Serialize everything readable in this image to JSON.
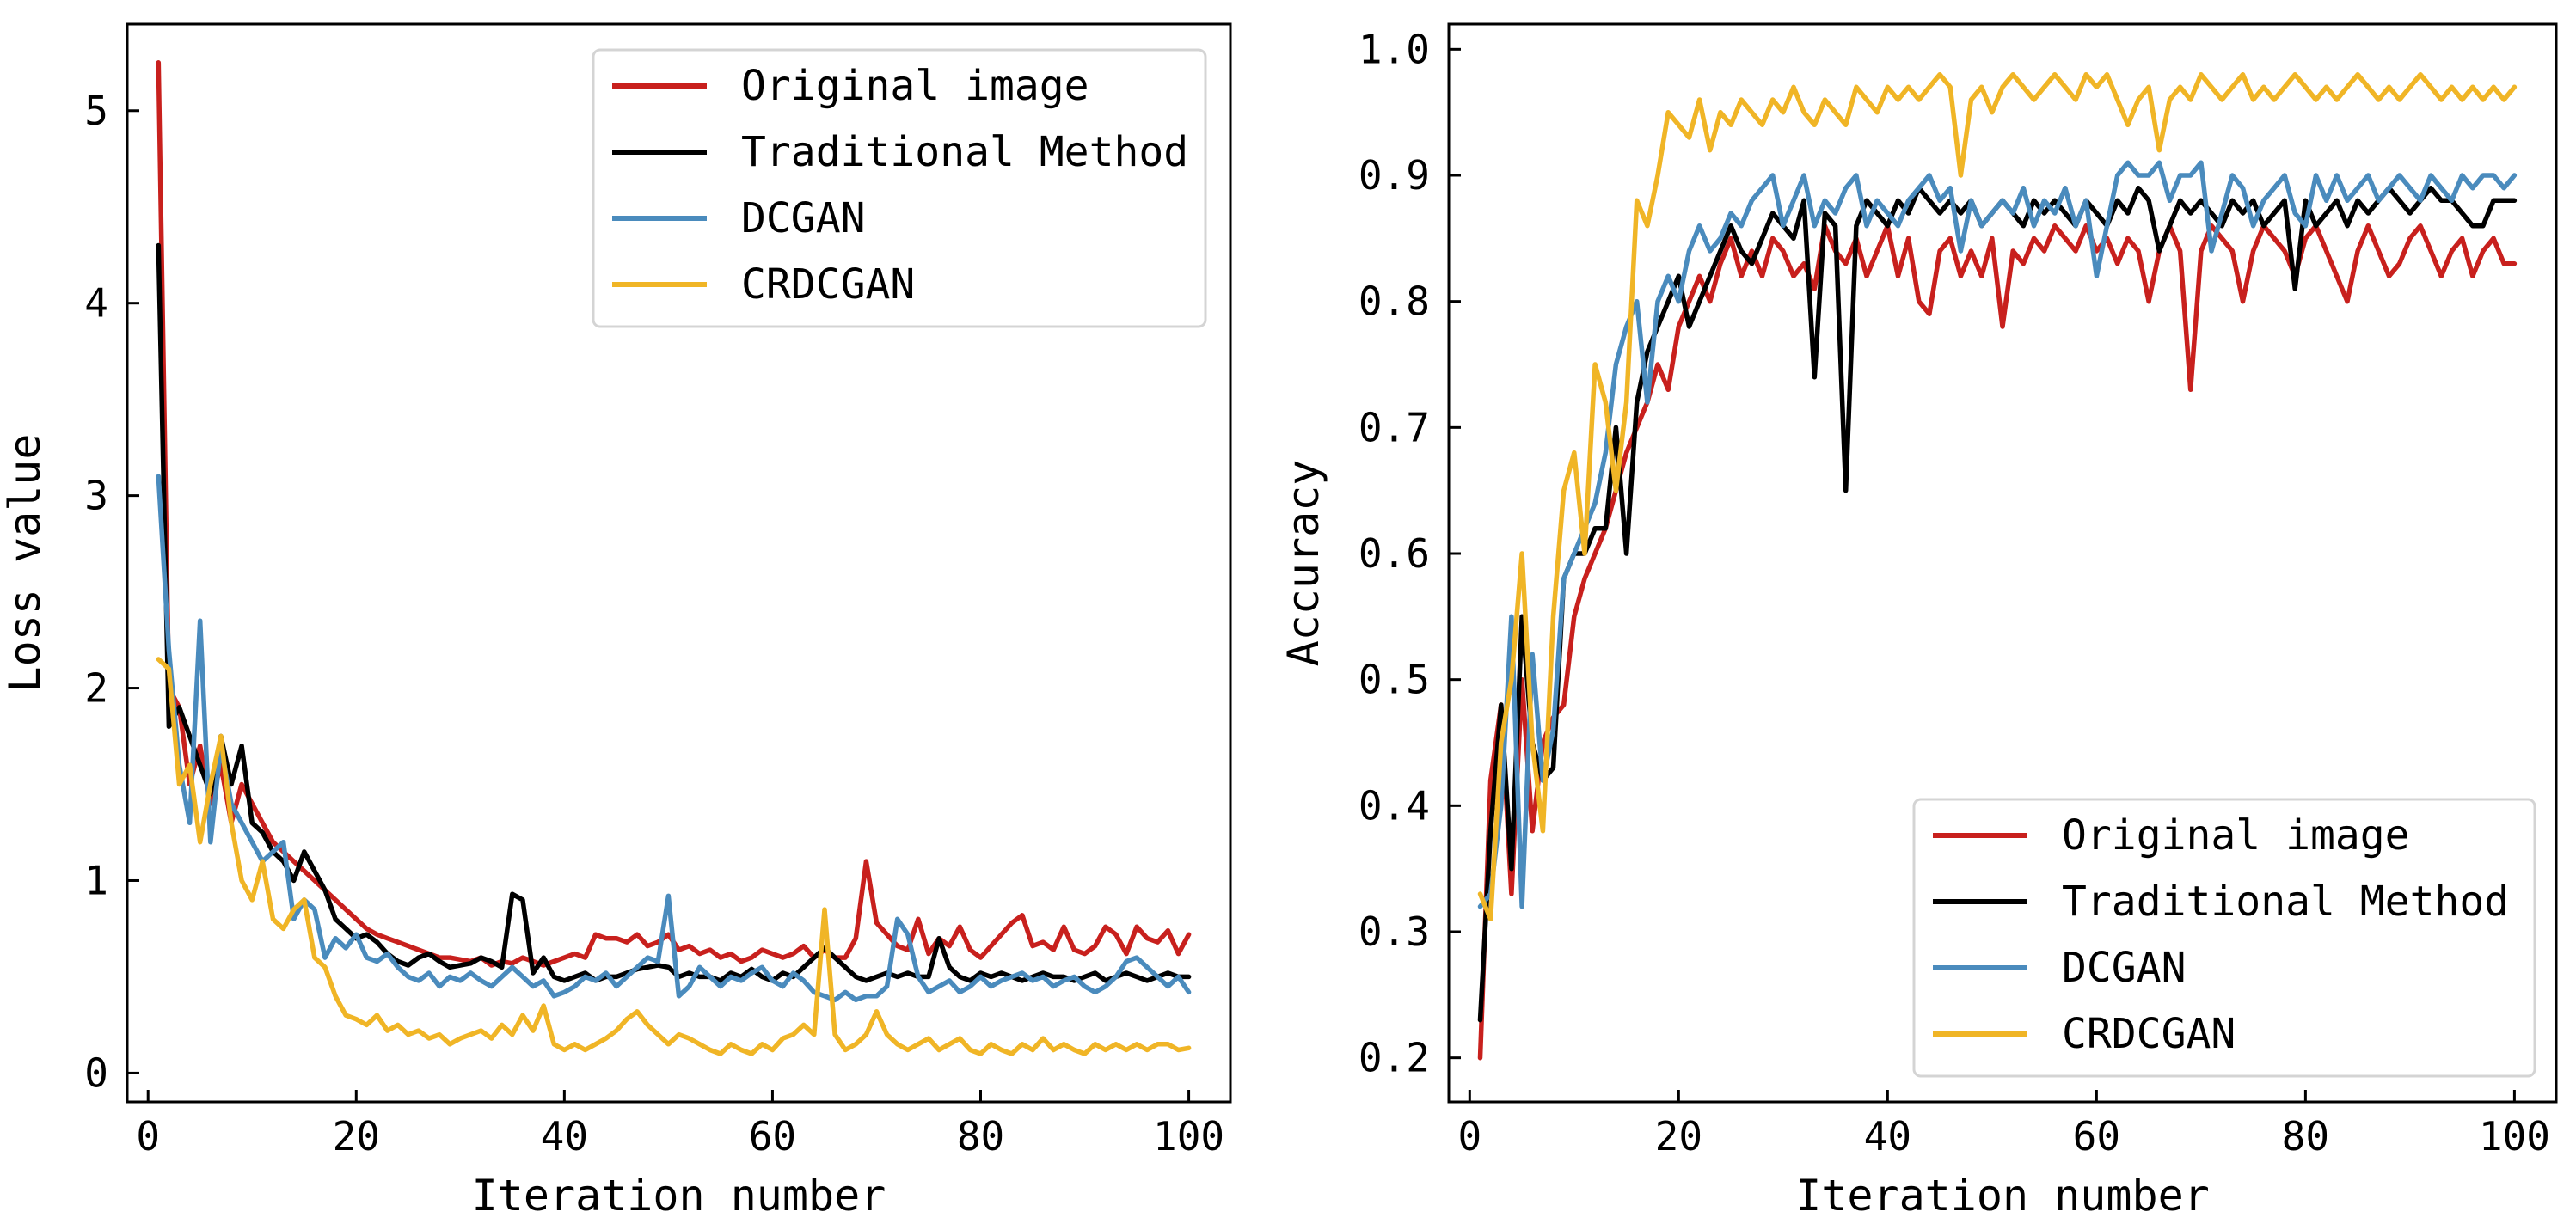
{
  "colors": {
    "Original image": "#c8201d",
    "Traditional Method": "#000000",
    "DCGAN": "#4a8bbd",
    "CRDCGAN": "#f0b526"
  },
  "chart_data": [
    {
      "type": "line",
      "title": "",
      "xlabel": "Iteration number",
      "ylabel": "Loss value",
      "xlim": [
        -2,
        104
      ],
      "ylim": [
        -0.15,
        5.45
      ],
      "xticks": [
        0,
        20,
        40,
        60,
        80,
        100
      ],
      "xtick_labels": [
        "0",
        "20",
        "40",
        "60",
        "80",
        "100"
      ],
      "yticks": [
        0,
        1,
        2,
        3,
        4,
        5
      ],
      "ytick_labels": [
        "0",
        "1",
        "2",
        "3",
        "4",
        "5"
      ],
      "legend_position": "top-right",
      "x": [
        1,
        2,
        3,
        4,
        5,
        6,
        7,
        8,
        9,
        10,
        11,
        12,
        13,
        14,
        15,
        16,
        17,
        18,
        19,
        20,
        21,
        22,
        23,
        24,
        25,
        26,
        27,
        28,
        29,
        30,
        31,
        32,
        33,
        34,
        35,
        36,
        37,
        38,
        39,
        40,
        41,
        42,
        43,
        44,
        45,
        46,
        47,
        48,
        49,
        50,
        51,
        52,
        53,
        54,
        55,
        56,
        57,
        58,
        59,
        60,
        61,
        62,
        63,
        64,
        65,
        66,
        67,
        68,
        69,
        70,
        71,
        72,
        73,
        74,
        75,
        76,
        77,
        78,
        79,
        80,
        81,
        82,
        83,
        84,
        85,
        86,
        87,
        88,
        89,
        90,
        91,
        92,
        93,
        94,
        95,
        96,
        97,
        98,
        99,
        100
      ],
      "series": [
        {
          "name": "Original image",
          "values": [
            5.25,
            2.0,
            1.9,
            1.5,
            1.7,
            1.4,
            1.6,
            1.3,
            1.5,
            1.4,
            1.3,
            1.2,
            1.15,
            1.1,
            1.05,
            1.0,
            0.95,
            0.9,
            0.85,
            0.8,
            0.75,
            0.72,
            0.7,
            0.68,
            0.66,
            0.64,
            0.62,
            0.6,
            0.6,
            0.59,
            0.58,
            0.6,
            0.56,
            0.58,
            0.57,
            0.6,
            0.58,
            0.56,
            0.58,
            0.6,
            0.62,
            0.6,
            0.72,
            0.7,
            0.7,
            0.68,
            0.72,
            0.66,
            0.68,
            0.72,
            0.64,
            0.66,
            0.62,
            0.64,
            0.6,
            0.62,
            0.58,
            0.6,
            0.64,
            0.62,
            0.6,
            0.62,
            0.66,
            0.6,
            0.64,
            0.6,
            0.6,
            0.7,
            1.1,
            0.78,
            0.72,
            0.66,
            0.64,
            0.8,
            0.62,
            0.7,
            0.66,
            0.76,
            0.64,
            0.6,
            0.66,
            0.72,
            0.78,
            0.82,
            0.66,
            0.68,
            0.64,
            0.76,
            0.64,
            0.62,
            0.66,
            0.76,
            0.72,
            0.62,
            0.76,
            0.7,
            0.68,
            0.74,
            0.62,
            0.72
          ]
        },
        {
          "name": "Traditional Method",
          "values": [
            4.3,
            1.8,
            1.9,
            1.75,
            1.6,
            1.45,
            1.75,
            1.5,
            1.7,
            1.3,
            1.25,
            1.15,
            1.1,
            1.0,
            1.15,
            1.05,
            0.95,
            0.8,
            0.75,
            0.7,
            0.72,
            0.68,
            0.62,
            0.58,
            0.56,
            0.6,
            0.62,
            0.58,
            0.55,
            0.56,
            0.57,
            0.6,
            0.58,
            0.55,
            0.93,
            0.9,
            0.52,
            0.6,
            0.5,
            0.48,
            0.5,
            0.52,
            0.48,
            0.5,
            0.5,
            0.52,
            0.54,
            0.55,
            0.56,
            0.55,
            0.5,
            0.52,
            0.5,
            0.5,
            0.48,
            0.52,
            0.5,
            0.54,
            0.5,
            0.48,
            0.52,
            0.5,
            0.55,
            0.6,
            0.65,
            0.6,
            0.55,
            0.5,
            0.48,
            0.5,
            0.52,
            0.5,
            0.52,
            0.5,
            0.5,
            0.7,
            0.55,
            0.5,
            0.48,
            0.52,
            0.5,
            0.52,
            0.5,
            0.48,
            0.5,
            0.52,
            0.5,
            0.5,
            0.48,
            0.5,
            0.52,
            0.48,
            0.5,
            0.52,
            0.5,
            0.48,
            0.5,
            0.52,
            0.5,
            0.5
          ]
        },
        {
          "name": "DCGAN",
          "values": [
            3.1,
            2.2,
            1.6,
            1.3,
            2.35,
            1.2,
            1.7,
            1.4,
            1.3,
            1.2,
            1.1,
            1.15,
            1.2,
            0.8,
            0.9,
            0.85,
            0.6,
            0.7,
            0.65,
            0.72,
            0.6,
            0.58,
            0.62,
            0.55,
            0.5,
            0.48,
            0.52,
            0.45,
            0.5,
            0.48,
            0.52,
            0.48,
            0.45,
            0.5,
            0.55,
            0.5,
            0.45,
            0.48,
            0.4,
            0.42,
            0.45,
            0.5,
            0.48,
            0.52,
            0.45,
            0.5,
            0.55,
            0.6,
            0.58,
            0.92,
            0.4,
            0.45,
            0.55,
            0.5,
            0.45,
            0.5,
            0.48,
            0.52,
            0.55,
            0.48,
            0.45,
            0.52,
            0.48,
            0.42,
            0.4,
            0.38,
            0.42,
            0.38,
            0.4,
            0.4,
            0.45,
            0.8,
            0.72,
            0.5,
            0.42,
            0.45,
            0.48,
            0.42,
            0.45,
            0.5,
            0.45,
            0.48,
            0.5,
            0.52,
            0.48,
            0.5,
            0.45,
            0.48,
            0.5,
            0.45,
            0.42,
            0.45,
            0.5,
            0.58,
            0.6,
            0.55,
            0.5,
            0.45,
            0.5,
            0.42
          ]
        },
        {
          "name": "CRDCGAN",
          "values": [
            2.15,
            2.1,
            1.5,
            1.6,
            1.2,
            1.5,
            1.75,
            1.3,
            1.0,
            0.9,
            1.1,
            0.8,
            0.75,
            0.85,
            0.9,
            0.6,
            0.55,
            0.4,
            0.3,
            0.28,
            0.25,
            0.3,
            0.22,
            0.25,
            0.2,
            0.22,
            0.18,
            0.2,
            0.15,
            0.18,
            0.2,
            0.22,
            0.18,
            0.25,
            0.2,
            0.3,
            0.22,
            0.35,
            0.15,
            0.12,
            0.15,
            0.12,
            0.15,
            0.18,
            0.22,
            0.28,
            0.32,
            0.25,
            0.2,
            0.15,
            0.2,
            0.18,
            0.15,
            0.12,
            0.1,
            0.15,
            0.12,
            0.1,
            0.15,
            0.12,
            0.18,
            0.2,
            0.25,
            0.2,
            0.85,
            0.2,
            0.12,
            0.15,
            0.2,
            0.32,
            0.2,
            0.15,
            0.12,
            0.15,
            0.18,
            0.12,
            0.15,
            0.18,
            0.12,
            0.1,
            0.15,
            0.12,
            0.1,
            0.15,
            0.12,
            0.18,
            0.12,
            0.15,
            0.12,
            0.1,
            0.15,
            0.12,
            0.15,
            0.12,
            0.15,
            0.12,
            0.15,
            0.15,
            0.12,
            0.13
          ]
        }
      ]
    },
    {
      "type": "line",
      "title": "",
      "xlabel": "Iteration number",
      "ylabel": "Accuracy",
      "xlim": [
        -2,
        104
      ],
      "ylim": [
        0.165,
        1.02
      ],
      "xticks": [
        0,
        20,
        40,
        60,
        80,
        100
      ],
      "xtick_labels": [
        "0",
        "20",
        "40",
        "60",
        "80",
        "100"
      ],
      "yticks": [
        0.2,
        0.3,
        0.4,
        0.5,
        0.6,
        0.7,
        0.8,
        0.9,
        1.0
      ],
      "ytick_labels": [
        "0.2",
        "0.3",
        "0.4",
        "0.5",
        "0.6",
        "0.7",
        "0.8",
        "0.9",
        "1.0"
      ],
      "legend_position": "bottom-right",
      "x": [
        1,
        2,
        3,
        4,
        5,
        6,
        7,
        8,
        9,
        10,
        11,
        12,
        13,
        14,
        15,
        16,
        17,
        18,
        19,
        20,
        21,
        22,
        23,
        24,
        25,
        26,
        27,
        28,
        29,
        30,
        31,
        32,
        33,
        34,
        35,
        36,
        37,
        38,
        39,
        40,
        41,
        42,
        43,
        44,
        45,
        46,
        47,
        48,
        49,
        50,
        51,
        52,
        53,
        54,
        55,
        56,
        57,
        58,
        59,
        60,
        61,
        62,
        63,
        64,
        65,
        66,
        67,
        68,
        69,
        70,
        71,
        72,
        73,
        74,
        75,
        76,
        77,
        78,
        79,
        80,
        81,
        82,
        83,
        84,
        85,
        86,
        87,
        88,
        89,
        90,
        91,
        92,
        93,
        94,
        95,
        96,
        97,
        98,
        99,
        100
      ],
      "series": [
        {
          "name": "Original image",
          "values": [
            0.2,
            0.42,
            0.48,
            0.33,
            0.5,
            0.38,
            0.45,
            0.47,
            0.48,
            0.55,
            0.58,
            0.6,
            0.62,
            0.65,
            0.68,
            0.7,
            0.72,
            0.75,
            0.73,
            0.78,
            0.8,
            0.82,
            0.8,
            0.83,
            0.85,
            0.82,
            0.84,
            0.82,
            0.85,
            0.84,
            0.82,
            0.83,
            0.81,
            0.86,
            0.84,
            0.83,
            0.85,
            0.82,
            0.84,
            0.86,
            0.82,
            0.85,
            0.8,
            0.79,
            0.84,
            0.85,
            0.82,
            0.84,
            0.82,
            0.85,
            0.78,
            0.84,
            0.83,
            0.85,
            0.84,
            0.86,
            0.85,
            0.84,
            0.86,
            0.84,
            0.85,
            0.83,
            0.85,
            0.84,
            0.8,
            0.84,
            0.86,
            0.84,
            0.73,
            0.84,
            0.86,
            0.85,
            0.84,
            0.8,
            0.84,
            0.86,
            0.85,
            0.84,
            0.82,
            0.85,
            0.86,
            0.84,
            0.82,
            0.8,
            0.84,
            0.86,
            0.84,
            0.82,
            0.83,
            0.85,
            0.86,
            0.84,
            0.82,
            0.84,
            0.85,
            0.82,
            0.84,
            0.85,
            0.83,
            0.83
          ]
        },
        {
          "name": "Traditional Method",
          "values": [
            0.23,
            0.38,
            0.48,
            0.35,
            0.55,
            0.45,
            0.42,
            0.43,
            0.58,
            0.6,
            0.6,
            0.62,
            0.62,
            0.7,
            0.6,
            0.72,
            0.76,
            0.78,
            0.8,
            0.82,
            0.78,
            0.8,
            0.82,
            0.84,
            0.86,
            0.84,
            0.83,
            0.85,
            0.87,
            0.86,
            0.85,
            0.88,
            0.74,
            0.87,
            0.86,
            0.65,
            0.86,
            0.88,
            0.87,
            0.86,
            0.88,
            0.87,
            0.89,
            0.88,
            0.87,
            0.88,
            0.87,
            0.88,
            0.86,
            0.87,
            0.88,
            0.87,
            0.86,
            0.88,
            0.87,
            0.88,
            0.87,
            0.86,
            0.88,
            0.87,
            0.86,
            0.88,
            0.87,
            0.89,
            0.88,
            0.84,
            0.86,
            0.88,
            0.87,
            0.88,
            0.87,
            0.86,
            0.88,
            0.87,
            0.88,
            0.86,
            0.87,
            0.88,
            0.81,
            0.88,
            0.86,
            0.87,
            0.88,
            0.86,
            0.88,
            0.87,
            0.88,
            0.89,
            0.88,
            0.87,
            0.88,
            0.89,
            0.88,
            0.88,
            0.87,
            0.86,
            0.86,
            0.88,
            0.88,
            0.88
          ]
        },
        {
          "name": "DCGAN",
          "values": [
            0.32,
            0.33,
            0.4,
            0.55,
            0.32,
            0.52,
            0.42,
            0.46,
            0.58,
            0.6,
            0.62,
            0.64,
            0.68,
            0.75,
            0.78,
            0.8,
            0.72,
            0.8,
            0.82,
            0.8,
            0.84,
            0.86,
            0.84,
            0.85,
            0.87,
            0.86,
            0.88,
            0.89,
            0.9,
            0.86,
            0.88,
            0.9,
            0.86,
            0.88,
            0.87,
            0.89,
            0.9,
            0.86,
            0.88,
            0.87,
            0.86,
            0.88,
            0.89,
            0.9,
            0.88,
            0.89,
            0.84,
            0.88,
            0.86,
            0.87,
            0.88,
            0.87,
            0.89,
            0.86,
            0.88,
            0.87,
            0.89,
            0.86,
            0.88,
            0.82,
            0.86,
            0.9,
            0.91,
            0.9,
            0.9,
            0.91,
            0.88,
            0.9,
            0.9,
            0.91,
            0.84,
            0.87,
            0.9,
            0.89,
            0.86,
            0.88,
            0.89,
            0.9,
            0.87,
            0.86,
            0.9,
            0.88,
            0.9,
            0.88,
            0.89,
            0.9,
            0.88,
            0.89,
            0.9,
            0.89,
            0.88,
            0.9,
            0.89,
            0.88,
            0.9,
            0.89,
            0.9,
            0.9,
            0.89,
            0.9
          ]
        },
        {
          "name": "CRDCGAN",
          "values": [
            0.33,
            0.31,
            0.45,
            0.5,
            0.6,
            0.45,
            0.38,
            0.55,
            0.65,
            0.68,
            0.6,
            0.75,
            0.72,
            0.65,
            0.72,
            0.88,
            0.86,
            0.9,
            0.95,
            0.94,
            0.93,
            0.96,
            0.92,
            0.95,
            0.94,
            0.96,
            0.95,
            0.94,
            0.96,
            0.95,
            0.97,
            0.95,
            0.94,
            0.96,
            0.95,
            0.94,
            0.97,
            0.96,
            0.95,
            0.97,
            0.96,
            0.97,
            0.96,
            0.97,
            0.98,
            0.97,
            0.9,
            0.96,
            0.97,
            0.95,
            0.97,
            0.98,
            0.97,
            0.96,
            0.97,
            0.98,
            0.97,
            0.96,
            0.98,
            0.97,
            0.98,
            0.96,
            0.94,
            0.96,
            0.97,
            0.92,
            0.96,
            0.97,
            0.96,
            0.98,
            0.97,
            0.96,
            0.97,
            0.98,
            0.96,
            0.97,
            0.96,
            0.97,
            0.98,
            0.97,
            0.96,
            0.97,
            0.96,
            0.97,
            0.98,
            0.97,
            0.96,
            0.97,
            0.96,
            0.97,
            0.98,
            0.97,
            0.96,
            0.97,
            0.96,
            0.97,
            0.96,
            0.97,
            0.96,
            0.97
          ]
        }
      ]
    }
  ]
}
